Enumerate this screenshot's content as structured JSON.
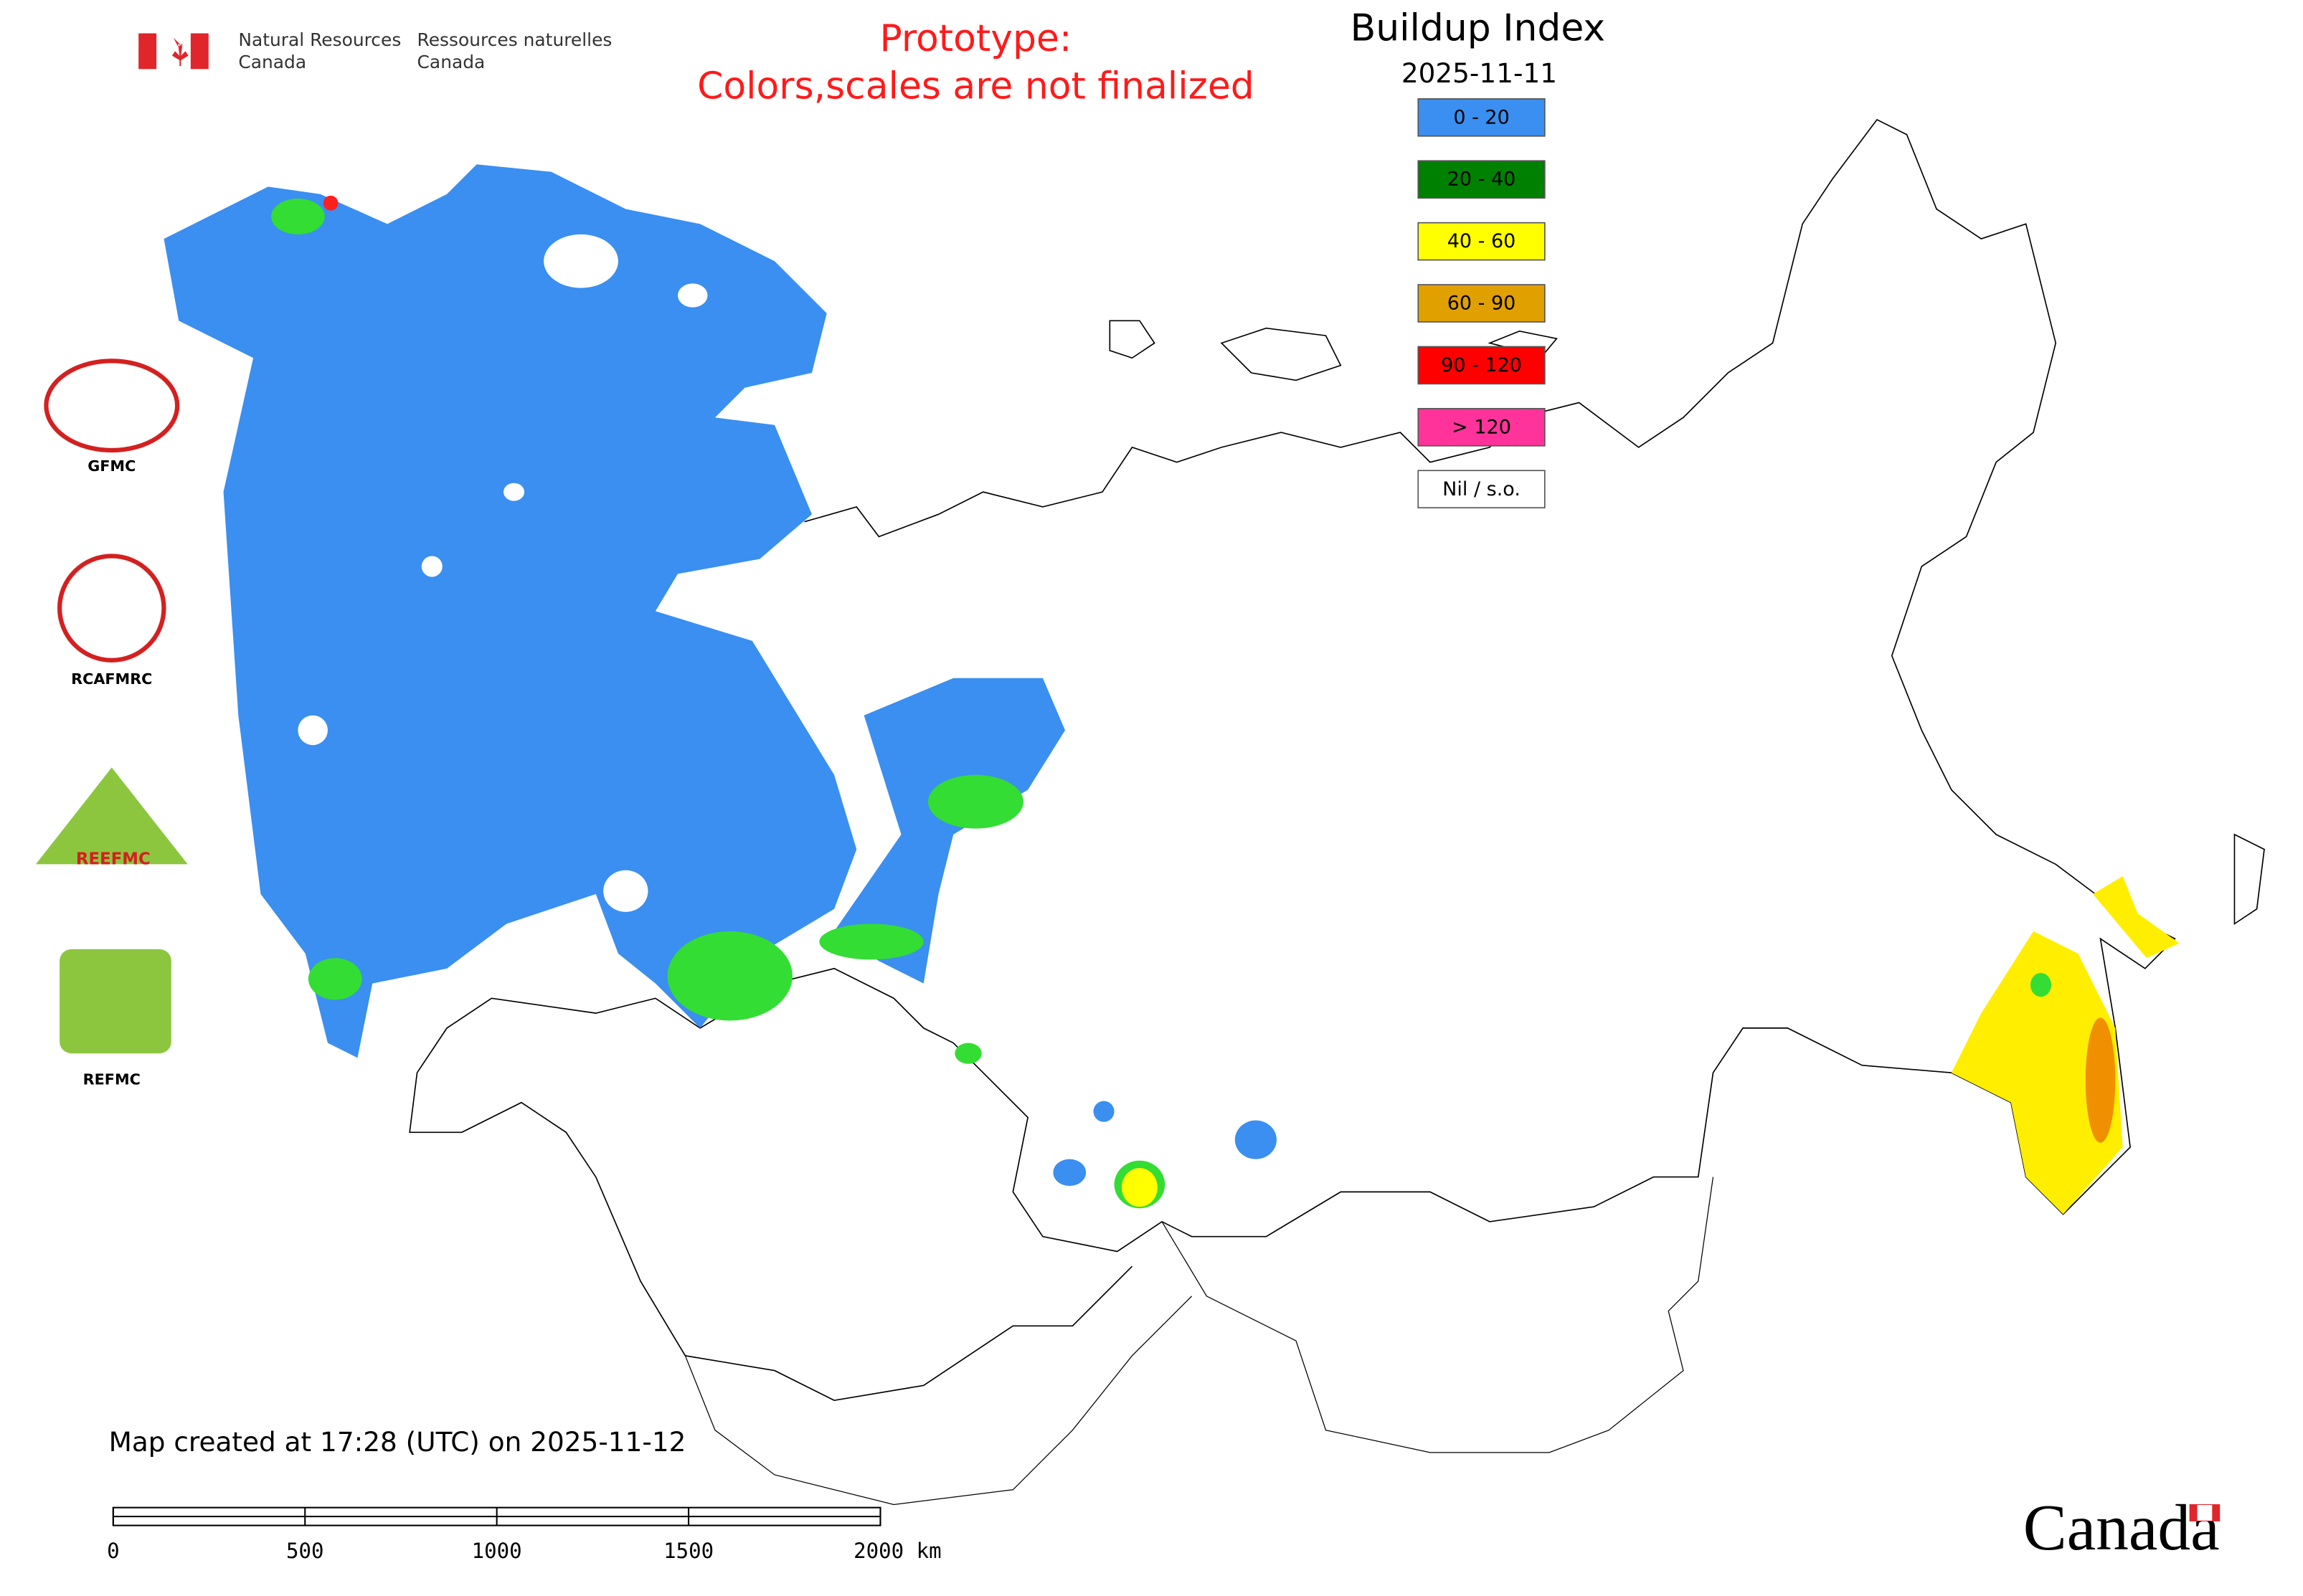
{
  "header": {
    "agency_en": [
      "Natural Resources",
      "Canada"
    ],
    "agency_fr": [
      "Ressources naturelles",
      "Canada"
    ],
    "notice": [
      "Prototype:",
      "Colors,scales are not finalized"
    ]
  },
  "map": {
    "title": "Buildup Index",
    "date": "2025-11-11",
    "legend": [
      {
        "label": "0 - 20",
        "color": "#3a8ff0"
      },
      {
        "label": "20 - 40",
        "color": "#008000"
      },
      {
        "label": "40 - 60",
        "color": "#ffff00"
      },
      {
        "label": "60 - 90",
        "color": "#e0a000"
      },
      {
        "label": "90 - 120",
        "color": "#ff0000"
      },
      {
        "label": "> 120",
        "color": "#ff3399"
      },
      {
        "label": "Nil / s.o.",
        "color": "#ffffff"
      }
    ],
    "created": "Map created at 17:28 (UTC) on 2025-11-12",
    "scale_bar": [
      "0",
      "500",
      "1000",
      "1500",
      "2000 km"
    ]
  },
  "logos": [
    "GFMC",
    "RCAFMRC",
    "REEFMC",
    "REFMC"
  ],
  "wordmark": "Canada"
}
